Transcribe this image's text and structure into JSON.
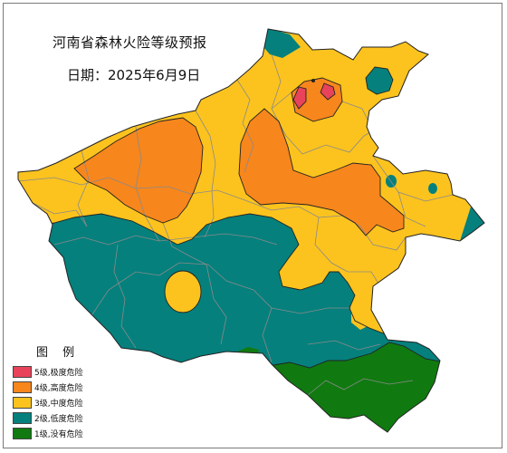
{
  "map": {
    "title": "河南省森林火险等级预报",
    "date_label": "日期：2025年6月9日"
  },
  "legend": {
    "title": "图 例",
    "items": [
      {
        "label": "5级,极度危险",
        "color": "#e8435a"
      },
      {
        "label": "4级,高度危险",
        "color": "#f7861c"
      },
      {
        "label": "3级,中度危险",
        "color": "#fcc31e"
      },
      {
        "label": "2级,低度危险",
        "color": "#05807d"
      },
      {
        "label": "1级,没有危险",
        "color": "#107a10"
      }
    ]
  },
  "colors": {
    "level5": "#e8435a",
    "level4": "#f7861c",
    "level3": "#fcc31e",
    "level2": "#05807d",
    "level1": "#107a10",
    "boundary": "#8a8a8a",
    "outline": "#222222"
  }
}
